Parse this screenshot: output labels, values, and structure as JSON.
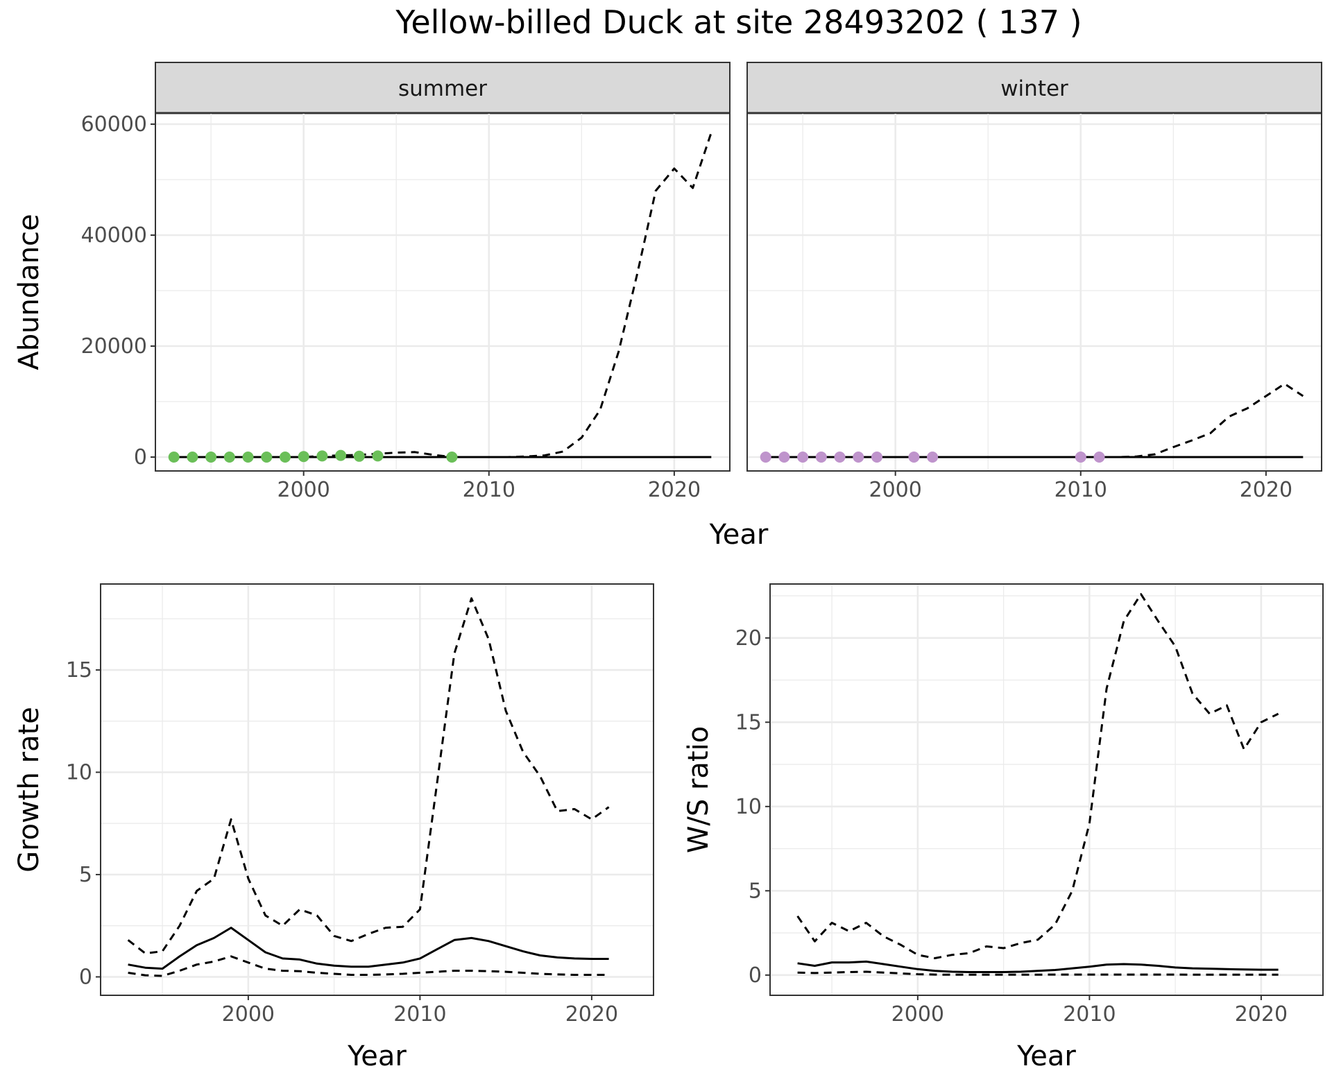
{
  "title": "Yellow-billed Duck at site 28493202 ( 137 )",
  "colors": {
    "summer_points": "#6BBF59",
    "winter_points": "#BF94CC",
    "line": "#000000",
    "grid": "#EBEBEB",
    "strip": "#D9D9D9"
  },
  "chart_data": [
    {
      "type": "line",
      "panel": "abundance",
      "facets": [
        "summer",
        "winter"
      ],
      "xlabel": "Year",
      "ylabel": "Abundance",
      "xlim": [
        1992,
        2023
      ],
      "ylim": [
        -2500,
        62000
      ],
      "xticks": [
        2000,
        2010,
        2020
      ],
      "yticks": [
        0,
        20000,
        40000,
        60000
      ],
      "ytick_labels": [
        "0",
        "20000",
        "40000",
        "60000"
      ],
      "grid": true,
      "facet_data": [
        {
          "facet": "summer",
          "x": [
            1993,
            1994,
            1995,
            1996,
            1997,
            1998,
            1999,
            2000,
            2001,
            2002,
            2003,
            2004,
            2005,
            2006,
            2007,
            2008,
            2009,
            2010,
            2011,
            2012,
            2013,
            2014,
            2015,
            2016,
            2017,
            2018,
            2019,
            2020,
            2021,
            2022
          ],
          "series": [
            {
              "style": "dashed",
              "values": [
                0,
                0,
                0,
                0,
                0,
                0,
                0,
                0,
                200,
                300,
                400,
                600,
                800,
                900,
                400,
                0,
                0,
                0,
                0,
                100,
                300,
                1000,
                3500,
                8500,
                19000,
                33000,
                48000,
                52000,
                48500,
                58500
              ]
            },
            {
              "style": "solid",
              "values": [
                0,
                0,
                0,
                0,
                0,
                0,
                0,
                0,
                0,
                0,
                0,
                0,
                0,
                0,
                0,
                0,
                0,
                0,
                0,
                0,
                0,
                0,
                0,
                0,
                0,
                0,
                0,
                0,
                0,
                0
              ]
            }
          ],
          "observed": {
            "x": [
              1993,
              1994,
              1995,
              1996,
              1997,
              1998,
              1999,
              2000,
              2001,
              2002,
              2003,
              2004,
              2008
            ],
            "y": [
              0,
              0,
              0,
              0,
              0,
              0,
              0,
              100,
              200,
              300,
              150,
              200,
              0
            ]
          }
        },
        {
          "facet": "winter",
          "x": [
            1993,
            1994,
            1995,
            1996,
            1997,
            1998,
            1999,
            2000,
            2001,
            2002,
            2003,
            2004,
            2005,
            2006,
            2007,
            2008,
            2009,
            2010,
            2011,
            2012,
            2013,
            2014,
            2015,
            2016,
            2017,
            2018,
            2019,
            2020,
            2021,
            2022
          ],
          "series": [
            {
              "style": "dashed",
              "values": [
                0,
                0,
                0,
                0,
                0,
                0,
                0,
                0,
                0,
                0,
                0,
                0,
                0,
                0,
                0,
                0,
                0,
                0,
                0,
                0,
                100,
                500,
                1800,
                3000,
                4300,
                7300,
                8800,
                11000,
                13200,
                11000
              ]
            },
            {
              "style": "solid",
              "values": [
                0,
                0,
                0,
                0,
                0,
                0,
                0,
                0,
                0,
                0,
                0,
                0,
                0,
                0,
                0,
                0,
                0,
                0,
                0,
                0,
                0,
                0,
                0,
                0,
                0,
                0,
                0,
                0,
                0,
                0
              ]
            }
          ],
          "observed": {
            "x": [
              1993,
              1994,
              1995,
              1996,
              1997,
              1998,
              1999,
              2001,
              2002,
              2010,
              2011
            ],
            "y": [
              0,
              0,
              0,
              0,
              0,
              0,
              0,
              0,
              0,
              0,
              0
            ]
          }
        }
      ]
    },
    {
      "type": "line",
      "panel": "growth",
      "xlabel": "Year",
      "ylabel": "Growth rate",
      "xlim": [
        1991.4,
        2023.6
      ],
      "ylim": [
        -0.9,
        19.2
      ],
      "xticks": [
        2000,
        2010,
        2020
      ],
      "yticks": [
        0,
        5,
        10,
        15
      ],
      "ytick_labels": [
        "0",
        "5",
        "10",
        "15"
      ],
      "grid": true,
      "x": [
        1993,
        1994,
        1995,
        1996,
        1997,
        1998,
        1999,
        2000,
        2001,
        2002,
        2003,
        2004,
        2005,
        2006,
        2007,
        2008,
        2009,
        2010,
        2011,
        2012,
        2013,
        2014,
        2015,
        2016,
        2017,
        2018,
        2019,
        2020,
        2021
      ],
      "series": [
        {
          "style": "dashed",
          "values": [
            1.8,
            1.15,
            1.25,
            2.5,
            4.2,
            4.8,
            7.7,
            4.8,
            3.0,
            2.5,
            3.3,
            3.0,
            2.0,
            1.75,
            2.1,
            2.4,
            2.45,
            3.3,
            9.5,
            15.8,
            18.5,
            16.5,
            13.0,
            11.0,
            9.8,
            8.1,
            8.2,
            7.7,
            8.3
          ]
        },
        {
          "style": "solid",
          "values": [
            0.6,
            0.45,
            0.4,
            1.0,
            1.55,
            1.9,
            2.4,
            1.8,
            1.2,
            0.9,
            0.85,
            0.65,
            0.55,
            0.5,
            0.5,
            0.6,
            0.7,
            0.9,
            1.35,
            1.8,
            1.9,
            1.75,
            1.5,
            1.25,
            1.05,
            0.95,
            0.9,
            0.88,
            0.88
          ]
        },
        {
          "style": "dashed",
          "values": [
            0.2,
            0.08,
            0.05,
            0.3,
            0.6,
            0.75,
            1.0,
            0.7,
            0.4,
            0.3,
            0.28,
            0.2,
            0.15,
            0.1,
            0.1,
            0.12,
            0.15,
            0.2,
            0.25,
            0.3,
            0.3,
            0.28,
            0.25,
            0.2,
            0.15,
            0.12,
            0.1,
            0.1,
            0.1
          ]
        }
      ]
    },
    {
      "type": "line",
      "panel": "ratio",
      "xlabel": "Year",
      "ylabel": "W/S ratio",
      "xlim": [
        1991.4,
        2023.6
      ],
      "ylim": [
        -1.2,
        23.2
      ],
      "xticks": [
        2000,
        2010,
        2020
      ],
      "yticks": [
        0,
        5,
        10,
        15,
        20
      ],
      "ytick_labels": [
        "0",
        "5",
        "10",
        "15",
        "20"
      ],
      "grid": true,
      "x": [
        1993,
        1994,
        1995,
        1996,
        1997,
        1998,
        1999,
        2000,
        2001,
        2002,
        2003,
        2004,
        2005,
        2006,
        2007,
        2008,
        2009,
        2010,
        2011,
        2012,
        2013,
        2014,
        2015,
        2016,
        2017,
        2018,
        2019,
        2020,
        2021
      ],
      "series": [
        {
          "style": "dashed",
          "values": [
            3.5,
            2.0,
            3.1,
            2.6,
            3.1,
            2.3,
            1.8,
            1.2,
            1.0,
            1.2,
            1.3,
            1.7,
            1.6,
            1.9,
            2.1,
            3.0,
            5.0,
            9.0,
            17.0,
            21.0,
            22.6,
            21.0,
            19.5,
            16.7,
            15.5,
            16.0,
            13.4,
            15.0,
            15.5
          ]
        },
        {
          "style": "solid",
          "values": [
            0.7,
            0.55,
            0.75,
            0.75,
            0.8,
            0.65,
            0.5,
            0.35,
            0.25,
            0.2,
            0.18,
            0.18,
            0.18,
            0.2,
            0.25,
            0.3,
            0.4,
            0.5,
            0.62,
            0.65,
            0.62,
            0.55,
            0.45,
            0.4,
            0.38,
            0.35,
            0.33,
            0.32,
            0.32
          ]
        },
        {
          "style": "dashed",
          "values": [
            0.15,
            0.12,
            0.15,
            0.18,
            0.2,
            0.15,
            0.1,
            0.05,
            0.03,
            0.02,
            0.02,
            0.02,
            0.02,
            0.02,
            0.02,
            0.03,
            0.03,
            0.03,
            0.03,
            0.03,
            0.03,
            0.03,
            0.03,
            0.02,
            0.02,
            0.02,
            0.02,
            0.02,
            0.02
          ]
        }
      ]
    }
  ]
}
